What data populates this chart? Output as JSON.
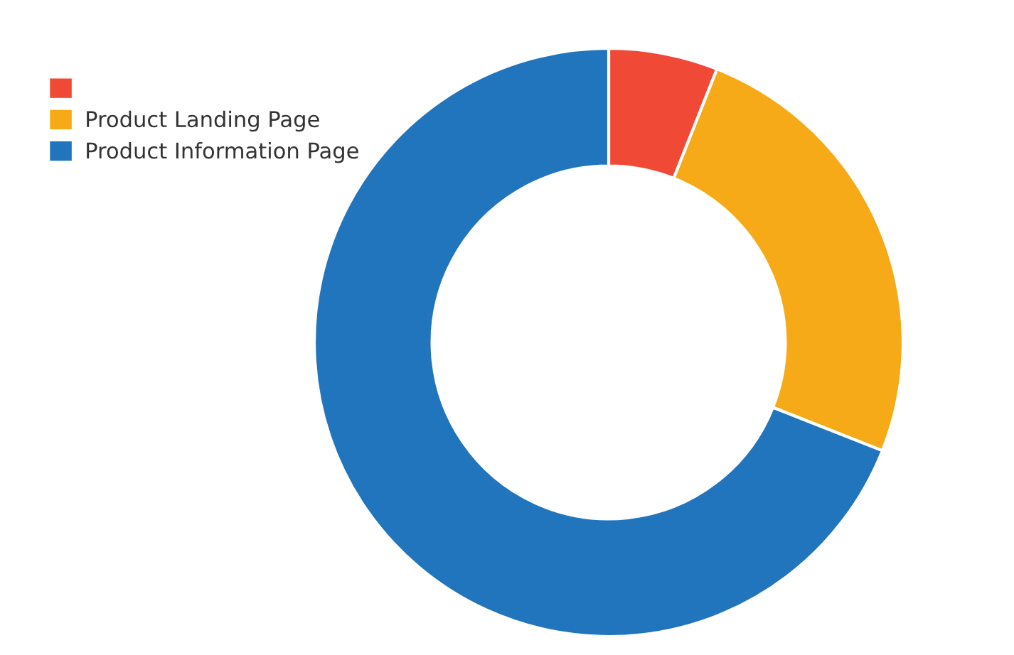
{
  "chart_data": {
    "type": "donut",
    "categories": [
      null,
      "Product Landing Page",
      "Product Information Page"
    ],
    "values": [
      6,
      25,
      69
    ],
    "colors": [
      "#f04a37",
      "#f6aa17",
      "#2175bd"
    ],
    "legend": "top left"
  }
}
